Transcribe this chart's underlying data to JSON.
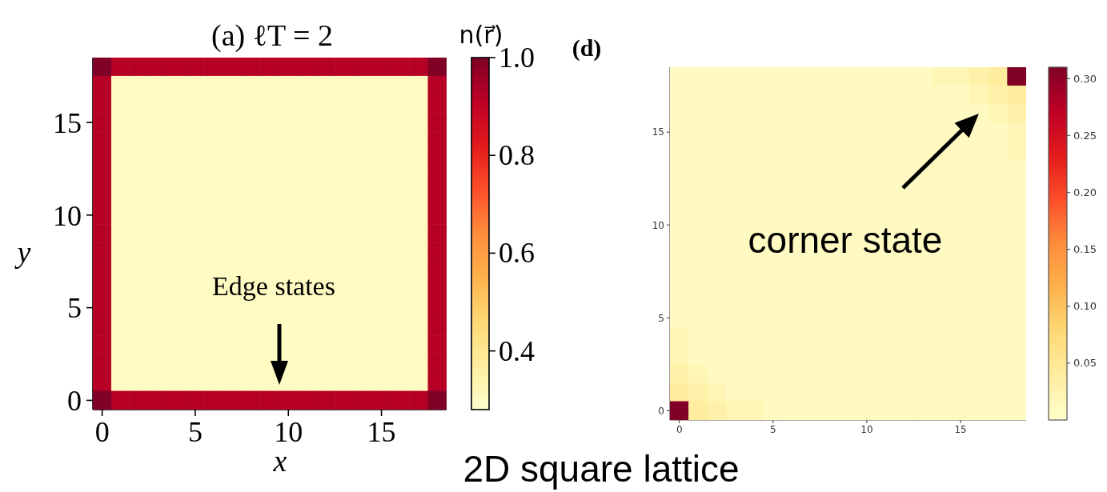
{
  "chart_data": [
    {
      "type": "heatmap",
      "title": "(a) ℓT = 2",
      "xlabel": "x",
      "ylabel": "y",
      "clabel": "n(r⃗)",
      "categories": [
        "0",
        null,
        null,
        null,
        null,
        "5",
        null,
        null,
        null,
        null,
        "10",
        null,
        null,
        null,
        null,
        "15",
        null,
        null,
        null
      ],
      "y_categories": [
        null,
        null,
        null,
        "15",
        null,
        null,
        null,
        null,
        "10",
        null,
        null,
        null,
        null,
        "5",
        null,
        null,
        null,
        null,
        "0"
      ],
      "cells": [
        [
          1,
          0.92,
          0.92,
          0.92,
          0.92,
          0.92,
          0.92,
          0.92,
          0.92,
          0.92,
          0.92,
          0.92,
          0.92,
          0.92,
          0.92,
          0.92,
          0.92,
          0.92,
          1
        ],
        [
          0.92,
          0.3,
          0.3,
          0.3,
          0.3,
          0.3,
          0.3,
          0.3,
          0.3,
          0.3,
          0.3,
          0.3,
          0.3,
          0.3,
          0.3,
          0.3,
          0.3,
          0.3,
          0.92
        ],
        [
          0.92,
          0.3,
          0.3,
          0.3,
          0.3,
          0.3,
          0.3,
          0.3,
          0.3,
          0.3,
          0.3,
          0.3,
          0.3,
          0.3,
          0.3,
          0.3,
          0.3,
          0.3,
          0.92
        ],
        [
          0.92,
          0.3,
          0.3,
          0.3,
          0.3,
          0.3,
          0.3,
          0.3,
          0.3,
          0.3,
          0.3,
          0.3,
          0.3,
          0.3,
          0.3,
          0.3,
          0.3,
          0.3,
          0.92
        ],
        [
          0.92,
          0.3,
          0.3,
          0.3,
          0.3,
          0.3,
          0.3,
          0.3,
          0.3,
          0.3,
          0.3,
          0.3,
          0.3,
          0.3,
          0.3,
          0.3,
          0.3,
          0.3,
          0.92
        ],
        [
          0.92,
          0.3,
          0.3,
          0.3,
          0.3,
          0.3,
          0.3,
          0.3,
          0.3,
          0.3,
          0.3,
          0.3,
          0.3,
          0.3,
          0.3,
          0.3,
          0.3,
          0.3,
          0.92
        ],
        [
          0.92,
          0.3,
          0.3,
          0.3,
          0.3,
          0.3,
          0.3,
          0.3,
          0.3,
          0.3,
          0.3,
          0.3,
          0.3,
          0.3,
          0.3,
          0.3,
          0.3,
          0.3,
          0.92
        ],
        [
          0.92,
          0.3,
          0.3,
          0.3,
          0.3,
          0.3,
          0.3,
          0.3,
          0.3,
          0.3,
          0.3,
          0.3,
          0.3,
          0.3,
          0.3,
          0.3,
          0.3,
          0.3,
          0.92
        ],
        [
          0.92,
          0.3,
          0.3,
          0.3,
          0.3,
          0.3,
          0.3,
          0.3,
          0.3,
          0.3,
          0.3,
          0.3,
          0.3,
          0.3,
          0.3,
          0.3,
          0.3,
          0.3,
          0.92
        ],
        [
          0.92,
          0.3,
          0.3,
          0.3,
          0.3,
          0.3,
          0.3,
          0.3,
          0.3,
          0.3,
          0.3,
          0.3,
          0.3,
          0.3,
          0.3,
          0.3,
          0.3,
          0.3,
          0.92
        ],
        [
          0.92,
          0.3,
          0.3,
          0.3,
          0.3,
          0.3,
          0.3,
          0.3,
          0.3,
          0.3,
          0.3,
          0.3,
          0.3,
          0.3,
          0.3,
          0.3,
          0.3,
          0.3,
          0.92
        ],
        [
          0.92,
          0.3,
          0.3,
          0.3,
          0.3,
          0.3,
          0.3,
          0.3,
          0.3,
          0.3,
          0.3,
          0.3,
          0.3,
          0.3,
          0.3,
          0.3,
          0.3,
          0.3,
          0.92
        ],
        [
          0.92,
          0.3,
          0.3,
          0.3,
          0.3,
          0.3,
          0.3,
          0.3,
          0.3,
          0.3,
          0.3,
          0.3,
          0.3,
          0.3,
          0.3,
          0.3,
          0.3,
          0.3,
          0.92
        ],
        [
          0.92,
          0.3,
          0.3,
          0.3,
          0.3,
          0.3,
          0.3,
          0.3,
          0.3,
          0.3,
          0.3,
          0.3,
          0.3,
          0.3,
          0.3,
          0.3,
          0.3,
          0.3,
          0.92
        ],
        [
          0.92,
          0.3,
          0.3,
          0.3,
          0.3,
          0.3,
          0.3,
          0.3,
          0.3,
          0.3,
          0.3,
          0.3,
          0.3,
          0.3,
          0.3,
          0.3,
          0.3,
          0.3,
          0.92
        ],
        [
          0.92,
          0.3,
          0.3,
          0.3,
          0.3,
          0.3,
          0.3,
          0.3,
          0.3,
          0.3,
          0.3,
          0.3,
          0.3,
          0.3,
          0.3,
          0.3,
          0.3,
          0.3,
          0.92
        ],
        [
          0.92,
          0.3,
          0.3,
          0.3,
          0.3,
          0.3,
          0.3,
          0.3,
          0.3,
          0.3,
          0.3,
          0.3,
          0.3,
          0.3,
          0.3,
          0.3,
          0.3,
          0.3,
          0.92
        ],
        [
          0.92,
          0.3,
          0.3,
          0.3,
          0.3,
          0.3,
          0.3,
          0.3,
          0.3,
          0.3,
          0.3,
          0.3,
          0.3,
          0.3,
          0.3,
          0.3,
          0.3,
          0.3,
          0.92
        ],
        [
          1,
          0.92,
          0.92,
          0.92,
          0.92,
          0.92,
          0.92,
          0.92,
          0.92,
          0.92,
          0.92,
          0.92,
          0.92,
          0.92,
          0.92,
          0.92,
          0.92,
          0.92,
          1
        ]
      ],
      "clim": [
        0.28,
        1
      ],
      "cticks": [
        0.4,
        0.6,
        0.8,
        {
          "value": 1,
          "label": "1.0"
        }
      ],
      "annotations": [
        "Edge states"
      ]
    },
    {
      "type": "heatmap",
      "title": "(d)",
      "categories": [
        "0",
        null,
        null,
        null,
        null,
        "5",
        null,
        null,
        null,
        null,
        "10",
        null,
        null,
        null,
        null,
        "15",
        null,
        null,
        null
      ],
      "y_categories": [
        null,
        null,
        null,
        "15",
        null,
        null,
        null,
        null,
        "10",
        null,
        null,
        null,
        null,
        "5",
        null,
        null,
        null,
        null,
        "0"
      ],
      "cells": [
        [
          0.01,
          0.01,
          0.01,
          0.01,
          0.01,
          0.01,
          0.01,
          0.01,
          0.01,
          0.01,
          0.01,
          0.01,
          0.01,
          0.01,
          0.02,
          0.02,
          0.03,
          0.04,
          0.31
        ],
        [
          0.01,
          0.01,
          0.01,
          0.01,
          0.01,
          0.01,
          0.01,
          0.01,
          0.01,
          0.01,
          0.01,
          0.01,
          0.01,
          0.01,
          0.01,
          0.01,
          0.02,
          0.03,
          0.04
        ],
        [
          0.01,
          0.01,
          0.01,
          0.01,
          0.01,
          0.01,
          0.01,
          0.01,
          0.01,
          0.01,
          0.01,
          0.01,
          0.01,
          0.01,
          0.01,
          0.01,
          0.01,
          0.02,
          0.03
        ],
        [
          0.01,
          0.01,
          0.01,
          0.01,
          0.01,
          0.01,
          0.01,
          0.01,
          0.01,
          0.01,
          0.01,
          0.01,
          0.01,
          0.01,
          0.01,
          0.01,
          0.01,
          0.01,
          0.02
        ],
        [
          0.01,
          0.01,
          0.01,
          0.01,
          0.01,
          0.01,
          0.01,
          0.01,
          0.01,
          0.01,
          0.01,
          0.01,
          0.01,
          0.01,
          0.01,
          0.01,
          0.01,
          0.01,
          0.02
        ],
        [
          0.01,
          0.01,
          0.01,
          0.01,
          0.01,
          0.01,
          0.01,
          0.01,
          0.01,
          0.01,
          0.01,
          0.01,
          0.01,
          0.01,
          0.01,
          0.01,
          0.01,
          0.01,
          0.01
        ],
        [
          0.01,
          0.01,
          0.01,
          0.01,
          0.01,
          0.01,
          0.01,
          0.01,
          0.01,
          0.01,
          0.01,
          0.01,
          0.01,
          0.01,
          0.01,
          0.01,
          0.01,
          0.01,
          0.01
        ],
        [
          0.01,
          0.01,
          0.01,
          0.01,
          0.01,
          0.01,
          0.01,
          0.01,
          0.01,
          0.01,
          0.01,
          0.01,
          0.01,
          0.01,
          0.01,
          0.01,
          0.01,
          0.01,
          0.01
        ],
        [
          0.01,
          0.01,
          0.01,
          0.01,
          0.01,
          0.01,
          0.01,
          0.01,
          0.01,
          0.01,
          0.01,
          0.01,
          0.01,
          0.01,
          0.01,
          0.01,
          0.01,
          0.01,
          0.01
        ],
        [
          0.01,
          0.01,
          0.01,
          0.01,
          0.01,
          0.01,
          0.01,
          0.01,
          0.01,
          0.01,
          0.01,
          0.01,
          0.01,
          0.01,
          0.01,
          0.01,
          0.01,
          0.01,
          0.01
        ],
        [
          0.01,
          0.01,
          0.01,
          0.01,
          0.01,
          0.01,
          0.01,
          0.01,
          0.01,
          0.01,
          0.01,
          0.01,
          0.01,
          0.01,
          0.01,
          0.01,
          0.01,
          0.01,
          0.01
        ],
        [
          0.01,
          0.01,
          0.01,
          0.01,
          0.01,
          0.01,
          0.01,
          0.01,
          0.01,
          0.01,
          0.01,
          0.01,
          0.01,
          0.01,
          0.01,
          0.01,
          0.01,
          0.01,
          0.01
        ],
        [
          0.01,
          0.01,
          0.01,
          0.01,
          0.01,
          0.01,
          0.01,
          0.01,
          0.01,
          0.01,
          0.01,
          0.01,
          0.01,
          0.01,
          0.01,
          0.01,
          0.01,
          0.01,
          0.01
        ],
        [
          0.01,
          0.01,
          0.01,
          0.01,
          0.01,
          0.01,
          0.01,
          0.01,
          0.01,
          0.01,
          0.01,
          0.01,
          0.01,
          0.01,
          0.01,
          0.01,
          0.01,
          0.01,
          0.01
        ],
        [
          0.02,
          0.01,
          0.01,
          0.01,
          0.01,
          0.01,
          0.01,
          0.01,
          0.01,
          0.01,
          0.01,
          0.01,
          0.01,
          0.01,
          0.01,
          0.01,
          0.01,
          0.01,
          0.01
        ],
        [
          0.02,
          0.01,
          0.01,
          0.01,
          0.01,
          0.01,
          0.01,
          0.01,
          0.01,
          0.01,
          0.01,
          0.01,
          0.01,
          0.01,
          0.01,
          0.01,
          0.01,
          0.01,
          0.01
        ],
        [
          0.03,
          0.02,
          0.01,
          0.01,
          0.01,
          0.01,
          0.01,
          0.01,
          0.01,
          0.01,
          0.01,
          0.01,
          0.01,
          0.01,
          0.01,
          0.01,
          0.01,
          0.01,
          0.01
        ],
        [
          0.04,
          0.03,
          0.02,
          0.01,
          0.01,
          0.01,
          0.01,
          0.01,
          0.01,
          0.01,
          0.01,
          0.01,
          0.01,
          0.01,
          0.01,
          0.01,
          0.01,
          0.01,
          0.01
        ],
        [
          0.31,
          0.04,
          0.03,
          0.02,
          0.02,
          0.01,
          0.01,
          0.01,
          0.01,
          0.01,
          0.01,
          0.01,
          0.01,
          0.01,
          0.01,
          0.01,
          0.01,
          0.01,
          0.01
        ]
      ],
      "clim": [
        0,
        0.31
      ],
      "cticks": [
        {
          "value": 0.05,
          "label": "0.05"
        },
        {
          "value": 0.1,
          "label": "0.10"
        },
        {
          "value": 0.15,
          "label": "0.15"
        },
        {
          "value": 0.2,
          "label": "0.20"
        },
        {
          "value": 0.25,
          "label": "0.25"
        },
        {
          "value": 0.3,
          "label": "0.30"
        }
      ],
      "annotations": [
        "corner state",
        "2D square lattice"
      ]
    }
  ]
}
